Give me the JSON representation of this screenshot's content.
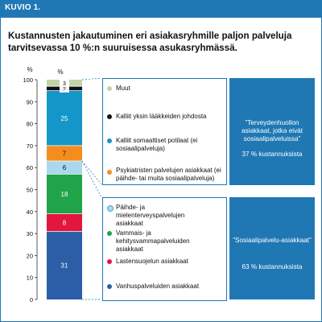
{
  "banner": {
    "label": "KUVIO 1."
  },
  "title": "Kustannusten jakautuminen eri asiakasryhmille paljon palveluja tarvitsevassa 10 %:n suuruisessa asukasryhmässä.",
  "chart_data": {
    "type": "bar",
    "stacked": true,
    "ylabel": "%",
    "ylim": [
      0,
      100
    ],
    "yticks": [
      0,
      10,
      20,
      30,
      40,
      50,
      60,
      70,
      80,
      90,
      100
    ],
    "bar_header": "%",
    "segments": [
      {
        "label": "Vanhuspalveluiden asiakkaat",
        "value": 31,
        "color": "#2c5ea8"
      },
      {
        "label": "Lastensuojelun asiakkaat",
        "value": 8,
        "color": "#e3173e"
      },
      {
        "label": "Vammais- ja kehitysvammapalveluiden asiakkaat",
        "value": 18,
        "color": "#21a34a"
      },
      {
        "label": "Päihde- ja mielenterveyspalvelujen asiakkaat",
        "value": 6,
        "color": "#a8d9ee"
      },
      {
        "label": "Psykiatristen palvelujen asiakkaat (ei päihde- tai muita sosiaalipalveluja)",
        "value": 7,
        "color": "#f58d1e"
      },
      {
        "label": "Kalliit somaattiset potilaat (ei sosiaalipalveluja)",
        "value": 25,
        "color": "#1596c8"
      },
      {
        "label": "Kalliit yksin lääkkeiden johdosta",
        "value": 2,
        "color": "#111111"
      },
      {
        "label": "Muut",
        "value": 3,
        "color": "#c3d4a8"
      }
    ]
  },
  "legend": {
    "top": [
      "Muut",
      "Kalliit yksin lääkkeiden johdosta",
      "Kalliit somaattiset potilaat (ei sosiaalipalveluja)",
      "Psykiatristen palvelujen asiakkaat (ei päihde- tai muita sosiaalipalveluja)"
    ],
    "bottom": [
      "Päihde- ja mielenterveyspalvelujen asiakkaat",
      "Vammais- ja kehitysvammapalveluiden asiakkaat",
      "Lastensuojelun asiakkaat",
      "Vanhuspalveluiden asiakkaat"
    ]
  },
  "notes": {
    "health": {
      "text": "”Terveydenhuollon asiakkaat, jotka eivät sosiaalipalveluissa”",
      "pct": "37 % kustannuksista"
    },
    "social": {
      "text": "”Sosiaalipalvelu-asiakkaat”",
      "pct": "63 % kustannuksista"
    }
  },
  "colors": {
    "accent": "#1f78b4",
    "note_bg": "#1f78b4"
  }
}
